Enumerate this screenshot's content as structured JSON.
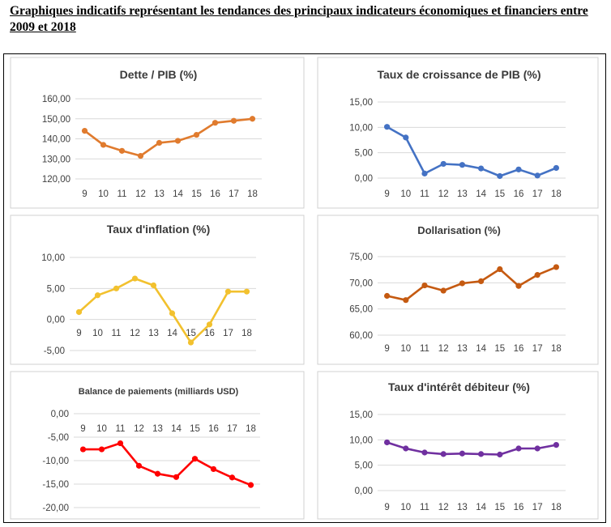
{
  "page_title": "Graphiques indicatifs représentant les tendances des principaux indicateurs économiques et financiers entre 2009 et 2018",
  "chart_data": [
    {
      "type": "line",
      "title": "Dette  / PIB (%)",
      "categories": [
        "9",
        "10",
        "11",
        "12",
        "13",
        "14",
        "15",
        "16",
        "17",
        "18"
      ],
      "series": [
        {
          "name": "Dette / PIB (%)",
          "values": [
            144,
            137,
            134,
            131.5,
            138,
            139,
            142,
            148,
            149,
            150
          ]
        }
      ],
      "yticks": [
        "160,00",
        "150,00",
        "140,00",
        "130,00",
        "120,00"
      ],
      "ylim": [
        120,
        160
      ],
      "color": "#e07b2e",
      "xaxis_position": "bottom"
    },
    {
      "type": "line",
      "title": "Taux de croissance de PIB (%)",
      "categories": [
        "9",
        "10",
        "11",
        "12",
        "13",
        "14",
        "15",
        "16",
        "17",
        "18"
      ],
      "series": [
        {
          "name": "Taux de croissance de PIB (%)",
          "values": [
            10.1,
            8.0,
            0.9,
            2.8,
            2.6,
            1.9,
            0.4,
            1.7,
            0.5,
            2.0
          ]
        }
      ],
      "yticks": [
        "15,00",
        "10,00",
        "5,00",
        "0,00"
      ],
      "ylim": [
        0,
        15
      ],
      "color": "#4472c4",
      "xaxis_position": "bottom"
    },
    {
      "type": "line",
      "title": "Taux d'inflation (%)",
      "categories": [
        "9",
        "10",
        "11",
        "12",
        "13",
        "14",
        "15",
        "16",
        "17",
        "18"
      ],
      "series": [
        {
          "name": "Taux d'inflation (%)",
          "values": [
            1.2,
            3.9,
            5.0,
            6.6,
            5.5,
            1.0,
            -3.7,
            -0.8,
            4.5,
            4.5
          ]
        }
      ],
      "yticks": [
        "10,00",
        "5,00",
        "0,00",
        "-5,00"
      ],
      "ylim": [
        -5,
        10
      ],
      "color": "#f2c12e",
      "xaxis_position": "zero"
    },
    {
      "type": "line",
      "title": "Dollarisation  (%)",
      "categories": [
        "9",
        "10",
        "11",
        "12",
        "13",
        "14",
        "15",
        "16",
        "17",
        "18"
      ],
      "series": [
        {
          "name": "Dollarisation (%)",
          "values": [
            67.5,
            66.7,
            69.5,
            68.5,
            69.9,
            70.3,
            72.6,
            69.4,
            71.5,
            73.0
          ]
        }
      ],
      "yticks": [
        "75,00",
        "70,00",
        "65,00",
        "60,00"
      ],
      "ylim": [
        60,
        75
      ],
      "color": "#c55a11",
      "xaxis_position": "bottom"
    },
    {
      "type": "line",
      "title": "Balance de paiements (milliards USD)",
      "categories": [
        "9",
        "10",
        "11",
        "12",
        "13",
        "14",
        "15",
        "16",
        "17",
        "18"
      ],
      "series": [
        {
          "name": "Balance de paiements (milliards USD)",
          "values": [
            -7.6,
            -7.6,
            -6.3,
            -11.1,
            -12.8,
            -13.5,
            -9.6,
            -11.8,
            -13.6,
            -15.2
          ]
        }
      ],
      "yticks": [
        "0,00",
        "-5,00",
        "-10,00",
        "-15,00",
        "-20,00"
      ],
      "ylim": [
        -20,
        0
      ],
      "color": "#ff0000",
      "xaxis_position": "top"
    },
    {
      "type": "line",
      "title": "Taux d'intérêt débiteur (%)",
      "categories": [
        "9",
        "10",
        "11",
        "12",
        "13",
        "14",
        "15",
        "16",
        "17",
        "18"
      ],
      "series": [
        {
          "name": "Taux d'intérêt débiteur (%)",
          "values": [
            9.5,
            8.3,
            7.5,
            7.2,
            7.3,
            7.2,
            7.1,
            8.3,
            8.3,
            9.0
          ]
        }
      ],
      "yticks": [
        "15,00",
        "10,00",
        "5,00",
        "0,00"
      ],
      "ylim": [
        0,
        15
      ],
      "color": "#7030a0",
      "xaxis_position": "bottom"
    }
  ]
}
